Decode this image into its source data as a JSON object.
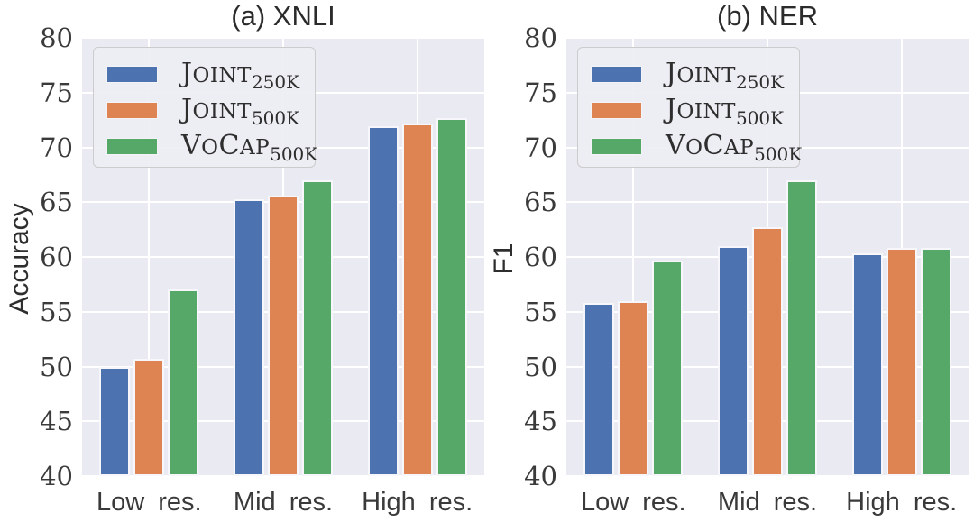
{
  "colors": {
    "blue": "#4c72b0",
    "orange": "#dd8452",
    "green": "#55a868",
    "plot_background": "#eaeaf2",
    "grid": "#ffffff"
  },
  "legend": {
    "entries": [
      {
        "name": "Joint",
        "subscript": "250K",
        "color": "#4c72b0"
      },
      {
        "name": "Joint",
        "subscript": "500K",
        "color": "#dd8452"
      },
      {
        "name": "VoCap",
        "subscript": "500K",
        "color": "#55a868"
      }
    ]
  },
  "chart_data": [
    {
      "type": "bar",
      "title": "(a) XNLI",
      "xlabel": "",
      "ylabel": "Accuracy",
      "categories": [
        "Low res.",
        "Mid res.",
        "High res."
      ],
      "series": [
        {
          "name": "Joint_250K",
          "color": "#4c72b0",
          "values": [
            50.0,
            65.3,
            71.9
          ]
        },
        {
          "name": "Joint_500K",
          "color": "#dd8452",
          "values": [
            50.7,
            65.6,
            72.2
          ]
        },
        {
          "name": "VoCap_500K",
          "color": "#55a868",
          "values": [
            57.0,
            67.0,
            72.7
          ]
        }
      ],
      "ylim": [
        40,
        80
      ],
      "yticks": [
        40,
        45,
        50,
        55,
        60,
        65,
        70,
        75,
        80
      ],
      "grid": true,
      "legend_position": "upper left"
    },
    {
      "type": "bar",
      "title": "(b) NER",
      "xlabel": "",
      "ylabel": "F1",
      "categories": [
        "Low res.",
        "Mid res.",
        "High res."
      ],
      "series": [
        {
          "name": "Joint_250K",
          "color": "#4c72b0",
          "values": [
            55.8,
            61.0,
            60.3
          ]
        },
        {
          "name": "Joint_500K",
          "color": "#dd8452",
          "values": [
            56.0,
            62.7,
            60.8
          ]
        },
        {
          "name": "VoCap_500K",
          "color": "#55a868",
          "values": [
            59.7,
            67.0,
            60.8
          ]
        }
      ],
      "ylim": [
        40,
        80
      ],
      "yticks": [
        40,
        45,
        50,
        55,
        60,
        65,
        70,
        75,
        80
      ],
      "grid": true,
      "legend_position": "upper left"
    }
  ]
}
